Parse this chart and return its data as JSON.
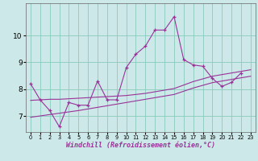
{
  "xlabel": "Windchill (Refroidissement éolien,°C)",
  "bg_color": "#cce8e8",
  "line_color": "#993399",
  "x_data": [
    0,
    1,
    2,
    3,
    4,
    5,
    6,
    7,
    8,
    9,
    10,
    11,
    12,
    13,
    14,
    15,
    16,
    17,
    18,
    19,
    20,
    21,
    22,
    23
  ],
  "y_main": [
    8.2,
    7.6,
    7.2,
    6.6,
    7.5,
    7.4,
    7.4,
    8.3,
    7.6,
    7.6,
    8.8,
    9.3,
    9.6,
    10.2,
    10.2,
    10.7,
    9.1,
    8.9,
    8.85,
    8.4,
    8.1,
    8.25,
    8.6,
    null
  ],
  "y_upper": [
    7.58,
    7.6,
    7.62,
    7.62,
    7.64,
    7.66,
    7.68,
    7.7,
    7.72,
    7.74,
    7.76,
    7.8,
    7.84,
    7.9,
    7.96,
    8.02,
    8.15,
    8.28,
    8.38,
    8.48,
    8.54,
    8.6,
    8.66,
    8.72
  ],
  "y_lower": [
    6.95,
    7.0,
    7.05,
    7.1,
    7.15,
    7.2,
    7.26,
    7.32,
    7.38,
    7.44,
    7.5,
    7.56,
    7.62,
    7.68,
    7.74,
    7.8,
    7.92,
    8.04,
    8.14,
    8.24,
    8.3,
    8.36,
    8.42,
    8.48
  ],
  "ylim": [
    6.4,
    11.2
  ],
  "yticks": [
    7,
    8,
    9,
    10
  ],
  "xticks": [
    0,
    1,
    2,
    3,
    4,
    5,
    6,
    7,
    8,
    9,
    10,
    11,
    12,
    13,
    14,
    15,
    16,
    17,
    18,
    19,
    20,
    21,
    22,
    23
  ],
  "grid_color": "#88ccbb",
  "label_fontsize": 6.0,
  "tick_fontsize": 6.5,
  "xlabel_color": "#993399"
}
